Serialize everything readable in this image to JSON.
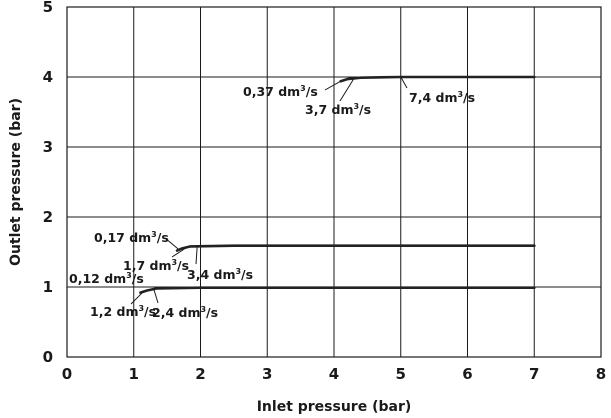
{
  "chart_data": {
    "type": "line",
    "title": "",
    "xlabel": "Inlet pressure (bar)",
    "ylabel": "Outlet pressure (bar)",
    "xlim": [
      0,
      8
    ],
    "ylim": [
      0,
      5
    ],
    "xticks": [
      0,
      1,
      2,
      3,
      4,
      5,
      6,
      7,
      8
    ],
    "yticks": [
      0,
      1,
      2,
      3,
      4,
      5
    ],
    "grid": true,
    "series": [
      {
        "x": [
          1.1,
          1.2,
          1.35,
          2.0,
          3.0,
          4.0,
          5.0,
          6.0,
          7.0
        ],
        "y": [
          0.92,
          0.95,
          0.98,
          0.99,
          0.99,
          0.99,
          0.99,
          0.99,
          0.99
        ]
      },
      {
        "x": [
          1.65,
          1.72,
          1.85,
          2.5,
          3.0,
          4.0,
          5.0,
          6.0,
          7.0
        ],
        "y": [
          1.52,
          1.55,
          1.58,
          1.59,
          1.59,
          1.59,
          1.59,
          1.59,
          1.59
        ]
      },
      {
        "x": [
          4.1,
          4.2,
          4.4,
          5.0,
          6.0,
          7.0
        ],
        "y": [
          3.94,
          3.97,
          3.99,
          4.0,
          4.0,
          4.0
        ]
      }
    ],
    "annotations": [
      {
        "text": "0,12 dm",
        "sup": "3",
        "unit": "/s",
        "x": 1.0,
        "y": 1.0
      },
      {
        "text": "1,2 dm",
        "sup": "3",
        "unit": "/s",
        "x": 1.15,
        "y": 0.94
      },
      {
        "text": "2,4 dm",
        "sup": "3",
        "unit": "/s",
        "x": 1.3,
        "y": 0.97
      },
      {
        "text": "0,17 dm",
        "sup": "3",
        "unit": "/s",
        "x": 1.67,
        "y": 1.54
      },
      {
        "text": "1,7 dm",
        "sup": "3",
        "unit": "/s",
        "x": 1.8,
        "y": 1.57
      },
      {
        "text": "3,4 dm",
        "sup": "3",
        "unit": "/s",
        "x": 1.95,
        "y": 1.58
      },
      {
        "text": "0,37 dm",
        "sup": "3",
        "unit": "/s",
        "x": 4.1,
        "y": 3.94
      },
      {
        "text": "3,7 dm",
        "sup": "3",
        "unit": "/s",
        "x": 4.3,
        "y": 3.98
      },
      {
        "text": "7,4 dm",
        "sup": "3",
        "unit": "/s",
        "x": 5.0,
        "y": 4.0
      }
    ]
  }
}
